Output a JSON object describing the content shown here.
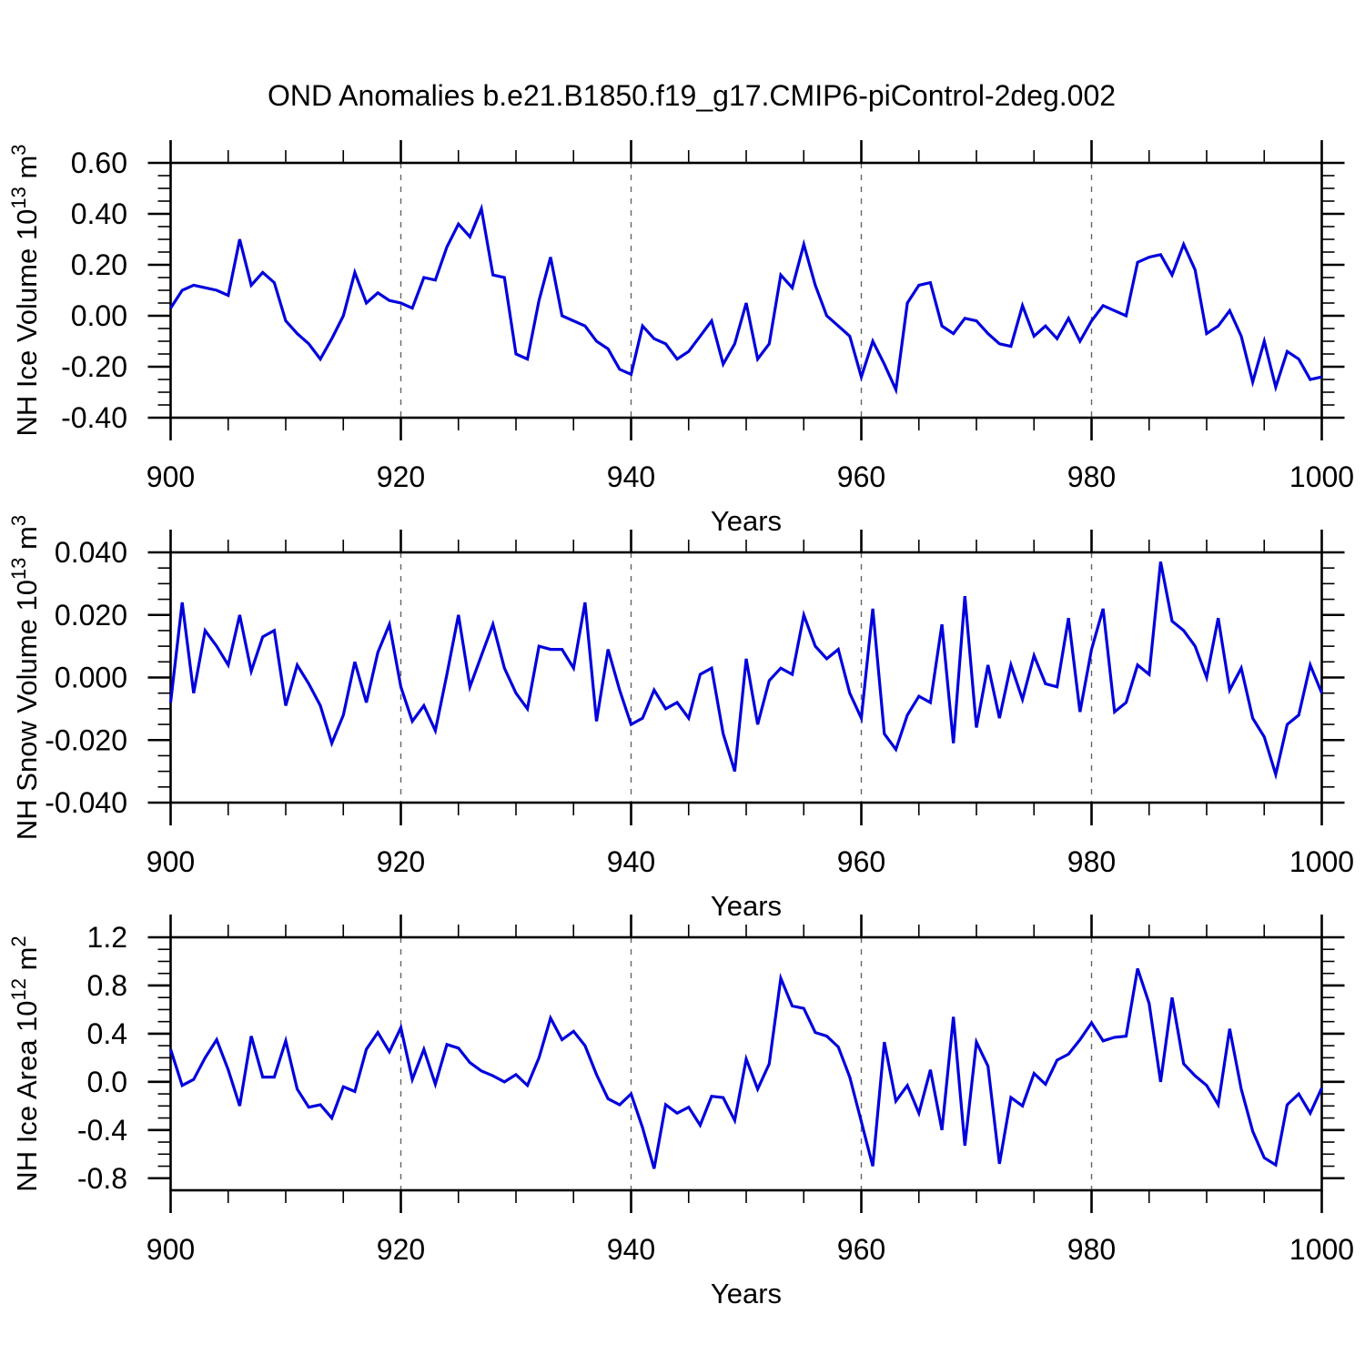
{
  "page_title": "OND Anomalies b.e21.B1850.f19_g17.CMIP6-piControl-2deg.002",
  "style": {
    "background": "#ffffff",
    "line_color": "#0000dd",
    "axis_color": "#000000",
    "grid_color": "#666666",
    "text_color": "#000000"
  },
  "x_axis": {
    "label": "Years",
    "min": 900,
    "max": 1000,
    "major_ticks": [
      900,
      920,
      940,
      960,
      980,
      1000
    ],
    "minor_step": 5,
    "grid_lines": [
      920,
      940,
      960,
      980
    ]
  },
  "chart_data": [
    {
      "type": "line",
      "id": "nh-ice-volume",
      "ylabel": "NH Ice Volume 10^13 m^3",
      "ylabel_parts": [
        {
          "t": "NH Ice Volume 10"
        },
        {
          "t": "13",
          "sup": true
        },
        {
          "t": " m"
        },
        {
          "t": "3",
          "sup": true
        }
      ],
      "xlabel": "Years",
      "ylim": [
        -0.4,
        0.6
      ],
      "yticks": [
        {
          "v": 0.6,
          "t": "0.60"
        },
        {
          "v": 0.4,
          "t": "0.40"
        },
        {
          "v": 0.2,
          "t": "0.20"
        },
        {
          "v": 0.0,
          "t": "0.00"
        },
        {
          "v": -0.2,
          "t": "-0.20"
        },
        {
          "v": -0.4,
          "t": "-0.40"
        }
      ],
      "yminor_step": 0.05,
      "x_start": 900,
      "x_step": 1,
      "values": [
        0.03,
        0.1,
        0.12,
        0.11,
        0.1,
        0.08,
        0.3,
        0.12,
        0.17,
        0.13,
        -0.02,
        -0.07,
        -0.11,
        -0.17,
        -0.09,
        0.0,
        0.17,
        0.05,
        0.09,
        0.06,
        0.05,
        0.03,
        0.15,
        0.14,
        0.27,
        0.36,
        0.31,
        0.42,
        0.16,
        0.15,
        -0.15,
        -0.17,
        0.06,
        0.23,
        0.0,
        -0.02,
        -0.04,
        -0.1,
        -0.13,
        -0.21,
        -0.23,
        -0.04,
        -0.09,
        -0.11,
        -0.17,
        -0.14,
        -0.08,
        -0.02,
        -0.19,
        -0.11,
        0.05,
        -0.17,
        -0.11,
        0.16,
        0.11,
        0.28,
        0.12,
        0.0,
        -0.04,
        -0.08,
        -0.24,
        -0.1,
        -0.19,
        -0.29,
        0.05,
        0.12,
        0.13,
        -0.04,
        -0.07,
        -0.01,
        -0.02,
        -0.07,
        -0.11,
        -0.12,
        0.04,
        -0.08,
        -0.04,
        -0.09,
        -0.01,
        -0.1,
        -0.02,
        0.04,
        0.02,
        0.0,
        0.21,
        0.23,
        0.24,
        0.16,
        0.28,
        0.18,
        -0.07,
        -0.04,
        0.02,
        -0.08,
        -0.26,
        -0.1,
        -0.28,
        -0.14,
        -0.17,
        -0.25,
        -0.24
      ]
    },
    {
      "type": "line",
      "id": "nh-snow-volume",
      "ylabel": "NH Snow Volume 10^13 m^3",
      "ylabel_parts": [
        {
          "t": "NH Snow Volume 10"
        },
        {
          "t": "13",
          "sup": true
        },
        {
          "t": " m"
        },
        {
          "t": "3",
          "sup": true
        }
      ],
      "xlabel": "Years",
      "ylim": [
        -0.04,
        0.04
      ],
      "yticks": [
        {
          "v": 0.04,
          "t": "0.040"
        },
        {
          "v": 0.02,
          "t": "0.020"
        },
        {
          "v": 0.0,
          "t": "0.000"
        },
        {
          "v": -0.02,
          "t": "-0.020"
        },
        {
          "v": -0.04,
          "t": "-0.040"
        }
      ],
      "yminor_step": 0.005,
      "x_start": 900,
      "x_step": 1,
      "values": [
        -0.008,
        0.024,
        -0.005,
        0.015,
        0.01,
        0.004,
        0.02,
        0.002,
        0.013,
        0.015,
        -0.009,
        0.004,
        -0.002,
        -0.009,
        -0.021,
        -0.012,
        0.005,
        -0.008,
        0.008,
        0.017,
        -0.003,
        -0.014,
        -0.009,
        -0.017,
        0.001,
        0.02,
        -0.003,
        0.007,
        0.017,
        0.003,
        -0.005,
        -0.01,
        0.01,
        0.009,
        0.009,
        0.003,
        0.024,
        -0.014,
        0.009,
        -0.004,
        -0.015,
        -0.013,
        -0.004,
        -0.01,
        -0.008,
        -0.013,
        0.001,
        0.003,
        -0.018,
        -0.03,
        0.006,
        -0.015,
        -0.001,
        0.003,
        0.001,
        0.02,
        0.01,
        0.006,
        0.009,
        -0.005,
        -0.013,
        0.022,
        -0.018,
        -0.023,
        -0.012,
        -0.006,
        -0.008,
        0.017,
        -0.021,
        0.026,
        -0.016,
        0.004,
        -0.013,
        0.004,
        -0.007,
        0.007,
        -0.002,
        -0.003,
        0.019,
        -0.011,
        0.009,
        0.022,
        -0.011,
        -0.008,
        0.004,
        0.001,
        0.037,
        0.018,
        0.015,
        0.01,
        0.0,
        0.019,
        -0.004,
        0.003,
        -0.013,
        -0.019,
        -0.031,
        -0.015,
        -0.012,
        0.004,
        -0.005
      ]
    },
    {
      "type": "line",
      "id": "nh-ice-area",
      "ylabel": "NH Ice Area 10^12 m^2",
      "ylabel_parts": [
        {
          "t": "NH Ice Area 10"
        },
        {
          "t": "12",
          "sup": true
        },
        {
          "t": " m"
        },
        {
          "t": "2",
          "sup": true
        }
      ],
      "xlabel": "Years",
      "ylim": [
        -0.9,
        1.2
      ],
      "yticks": [
        {
          "v": 1.2,
          "t": "1.2"
        },
        {
          "v": 0.8,
          "t": "0.8"
        },
        {
          "v": 0.4,
          "t": "0.4"
        },
        {
          "v": 0.0,
          "t": "0.0"
        },
        {
          "v": -0.4,
          "t": "-0.4"
        },
        {
          "v": -0.8,
          "t": "-0.8"
        }
      ],
      "yminor_step": 0.1,
      "x_start": 900,
      "x_step": 1,
      "values": [
        0.27,
        -0.03,
        0.02,
        0.2,
        0.35,
        0.1,
        -0.2,
        0.38,
        0.04,
        0.04,
        0.34,
        -0.06,
        -0.21,
        -0.19,
        -0.3,
        -0.04,
        -0.08,
        0.27,
        0.41,
        0.25,
        0.45,
        0.02,
        0.27,
        -0.02,
        0.31,
        0.28,
        0.16,
        0.09,
        0.05,
        0.0,
        0.06,
        -0.03,
        0.2,
        0.53,
        0.35,
        0.42,
        0.3,
        0.06,
        -0.14,
        -0.19,
        -0.1,
        -0.38,
        -0.72,
        -0.19,
        -0.26,
        -0.21,
        -0.36,
        -0.12,
        -0.13,
        -0.32,
        0.19,
        -0.06,
        0.15,
        0.86,
        0.63,
        0.61,
        0.41,
        0.38,
        0.29,
        0.04,
        -0.33,
        -0.7,
        0.33,
        -0.16,
        -0.03,
        -0.26,
        0.1,
        -0.4,
        0.54,
        -0.53,
        0.33,
        0.13,
        -0.68,
        -0.13,
        -0.2,
        0.07,
        -0.02,
        0.18,
        0.23,
        0.35,
        0.49,
        0.34,
        0.37,
        0.38,
        0.94,
        0.65,
        0.0,
        0.7,
        0.15,
        0.05,
        -0.03,
        -0.19,
        0.44,
        -0.06,
        -0.41,
        -0.63,
        -0.69,
        -0.19,
        -0.1,
        -0.26,
        -0.05
      ]
    }
  ]
}
